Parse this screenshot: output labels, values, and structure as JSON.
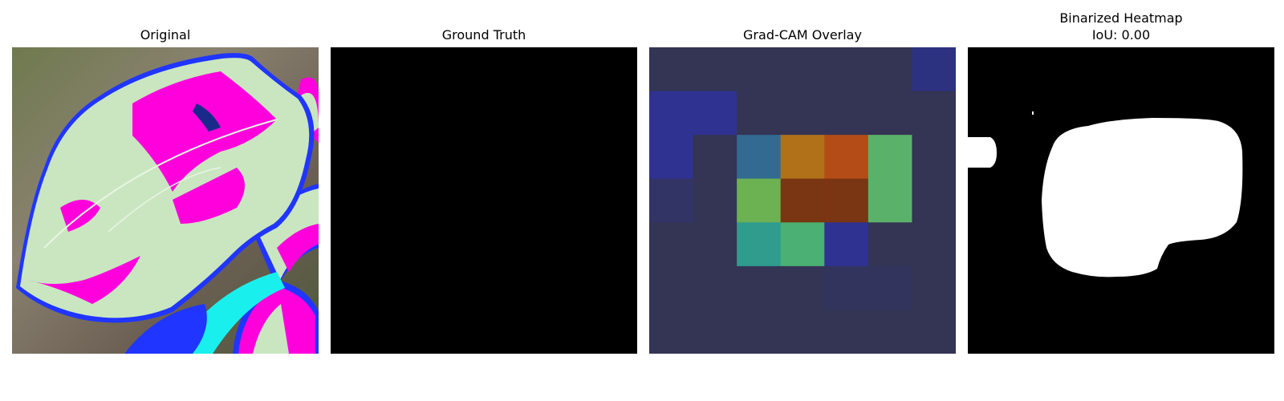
{
  "panels": {
    "original": {
      "title": "Original"
    },
    "ground_truth": {
      "title": "Ground Truth"
    },
    "gradcam": {
      "title": "Grad-CAM Overlay",
      "grid_rows": 7,
      "grid_cols": 7,
      "cell_colors": [
        [
          "#343454",
          "#343454",
          "#343454",
          "#343454",
          "#343454",
          "#343454",
          "#2c3280"
        ],
        [
          "#2f3290",
          "#2f3290",
          "#343454",
          "#343454",
          "#343454",
          "#343454",
          "#343454"
        ],
        [
          "#2f3290",
          "#343454",
          "#336a92",
          "#b07118",
          "#b44c17",
          "#5ab26a",
          "#343454"
        ],
        [
          "#333466",
          "#343454",
          "#6cb152",
          "#7a3512",
          "#7a3512",
          "#5ab26a",
          "#343454"
        ],
        [
          "#343454",
          "#343454",
          "#2f9c8e",
          "#4ab073",
          "#2f3290",
          "#343454",
          "#343454"
        ],
        [
          "#343454",
          "#343454",
          "#343454",
          "#343454",
          "#33345e",
          "#33345e",
          "#343454"
        ],
        [
          "#343454",
          "#343454",
          "#343454",
          "#343454",
          "#343454",
          "#343454",
          "#343454"
        ]
      ]
    },
    "binarized": {
      "title_line1": "Binarized Heatmap",
      "title_line2": "IoU: 0.00"
    }
  },
  "colors": {
    "ground_truth_fill": "#000000",
    "binarized_background": "#000000",
    "binarized_foreground": "#ffffff",
    "leaf_pale": "#c9e6c0",
    "leaf_magenta": "#ff00dd",
    "leaf_edge_blue": "#2035ff",
    "cyan_patch": "#19f0ee",
    "background_brown": "#7a7166"
  }
}
